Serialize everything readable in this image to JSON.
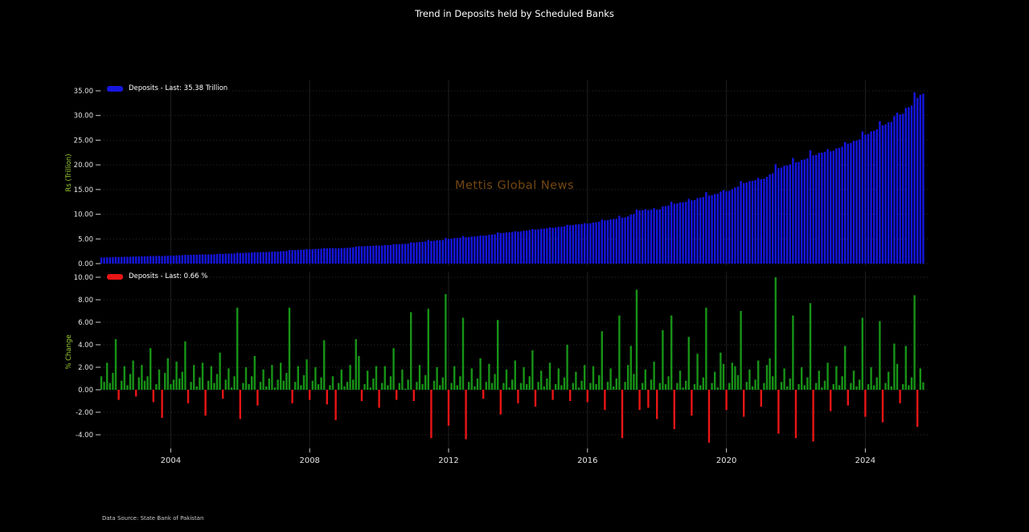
{
  "title": "Trend in Deposits held by Scheduled Banks",
  "watermark": "Mettis Global News",
  "footer": "Data Source: State Bank of Pakistan",
  "colors": {
    "background": "#000000",
    "deposits_bar": "#1616e0",
    "positive_bar": "#179317",
    "negative_bar": "#ea1515",
    "axis_label": "#9acd32",
    "tick_label": "#e6e6e6",
    "title_text": "#ffffff",
    "watermark_text": "rgba(228,142,38,0.5)",
    "footer_text": "#c8c8c8",
    "grid": "#3a3a3a",
    "grid_vertical": "#1f1f1f",
    "tick_mark": "#cccccc"
  },
  "x_axis": {
    "tick_years": [
      2004,
      2008,
      2012,
      2016,
      2020,
      2024
    ],
    "start": "2002-01",
    "end": "2025-09",
    "frequency": "monthly"
  },
  "chart_data": [
    {
      "type": "bar",
      "panel": "top",
      "legend_label": "Deposits - Last: 35.38 Trillion",
      "ylabel": "Rs (Trillion)",
      "unit": "Rs Trillion",
      "ylim": [
        0,
        37
      ],
      "yticks": [
        0,
        5,
        10,
        15,
        20,
        25,
        30,
        35
      ],
      "last_value": 35.38,
      "deposits_start": 1.22,
      "derivation": "deposits[i] = deposits[i-1] * (1 + chart_data[1].pct_change_monthly[i]/100), starting at deposits_start in Jan 2002",
      "reference_values_trillion": {
        "2002-01": 1.22,
        "2011-12": 5.2,
        "2016-12": 9.8,
        "2020-12": 17.6,
        "2023-12": 27.5,
        "2025-06": 35.7,
        "2025-09": 35.38
      }
    },
    {
      "type": "bar",
      "panel": "bottom",
      "legend_label": "Deposits - Last: 0.66 %",
      "ylabel": "% Change",
      "unit": "percent",
      "ylim": [
        -5.2,
        10.6
      ],
      "yticks": [
        -4,
        -2,
        0,
        2,
        4,
        6,
        8,
        10
      ],
      "last_value": 0.66,
      "pct_change_monthly": [
        1.2,
        0.7,
        2.4,
        0.6,
        1.5,
        4.5,
        -0.9,
        0.8,
        2.1,
        0.4,
        1.4,
        2.6,
        -0.6,
        1.1,
        2.2,
        0.8,
        1.2,
        3.7,
        -1.1,
        0.5,
        1.8,
        -2.5,
        1.5,
        2.8,
        0.5,
        0.9,
        2.5,
        1.0,
        1.6,
        4.3,
        -1.2,
        0.7,
        2.2,
        0.3,
        1.1,
        2.4,
        -2.3,
        0.8,
        2.1,
        0.6,
        1.4,
        3.3,
        -0.8,
        0.9,
        1.9,
        0.2,
        1.2,
        7.3,
        -2.6,
        0.6,
        2.0,
        0.5,
        1.2,
        3.0,
        -1.4,
        0.7,
        1.8,
        0.3,
        1.0,
        2.2,
        0.2,
        0.9,
        2.4,
        0.8,
        1.5,
        7.3,
        -1.2,
        0.7,
        2.1,
        0.4,
        1.3,
        2.7,
        -0.9,
        0.8,
        2.0,
        0.5,
        1.1,
        4.4,
        -1.3,
        0.4,
        1.2,
        -2.7,
        0.6,
        1.8,
        0.3,
        0.7,
        2.2,
        0.9,
        4.5,
        3.0,
        -1.0,
        0.5,
        1.7,
        0.2,
        1.0,
        2.1,
        -1.6,
        0.6,
        2.1,
        0.4,
        1.2,
        3.7,
        -0.9,
        0.6,
        1.8,
        0.1,
        0.9,
        6.9,
        -1.0,
        0.7,
        2.2,
        0.5,
        1.3,
        7.2,
        -4.3,
        0.8,
        2.0,
        0.4,
        1.1,
        8.5,
        -3.2,
        0.6,
        2.1,
        0.4,
        1.2,
        6.4,
        -4.4,
        0.7,
        1.9,
        0.3,
        1.0,
        2.8,
        -0.8,
        0.7,
        2.3,
        0.6,
        1.4,
        6.2,
        -2.2,
        0.6,
        1.8,
        0.2,
        0.9,
        2.6,
        -1.2,
        0.6,
        2.0,
        0.5,
        1.2,
        3.5,
        -1.5,
        0.7,
        1.7,
        0.3,
        1.0,
        2.4,
        -0.9,
        0.5,
        1.9,
        0.4,
        1.1,
        4.0,
        -1.0,
        0.6,
        1.6,
        0.2,
        0.8,
        2.2,
        -1.1,
        0.6,
        2.1,
        0.5,
        1.3,
        5.2,
        -1.8,
        0.7,
        1.9,
        0.3,
        1.0,
        6.6,
        -4.3,
        0.7,
        2.2,
        3.9,
        1.4,
        8.9,
        -1.8,
        0.6,
        1.8,
        -1.6,
        0.9,
        2.5,
        -2.6,
        0.6,
        5.3,
        0.5,
        1.2,
        6.6,
        -3.5,
        0.6,
        1.7,
        0.2,
        0.8,
        4.7,
        -2.3,
        0.5,
        3.2,
        0.4,
        1.1,
        7.3,
        -4.7,
        0.6,
        1.6,
        0.2,
        3.3,
        2.3,
        -1.8,
        0.6,
        2.4,
        2.1,
        1.3,
        7.0,
        -2.4,
        0.7,
        1.8,
        0.3,
        0.9,
        2.6,
        -1.5,
        0.6,
        2.2,
        2.8,
        1.2,
        10.0,
        -3.9,
        0.7,
        1.9,
        0.3,
        1.0,
        6.6,
        -4.3,
        0.5,
        2.0,
        0.4,
        1.1,
        7.7,
        -4.6,
        0.6,
        1.7,
        0.2,
        0.8,
        2.4,
        -1.9,
        0.5,
        2.1,
        0.4,
        1.2,
        3.9,
        -1.4,
        0.6,
        1.7,
        0.3,
        0.9,
        6.4,
        -2.4,
        0.5,
        2.0,
        0.4,
        1.1,
        6.1,
        -2.9,
        0.6,
        1.6,
        0.3,
        4.1,
        2.3,
        -1.2,
        0.5,
        3.9,
        0.4,
        1.1,
        8.4,
        -3.3,
        1.9,
        0.66
      ]
    }
  ]
}
